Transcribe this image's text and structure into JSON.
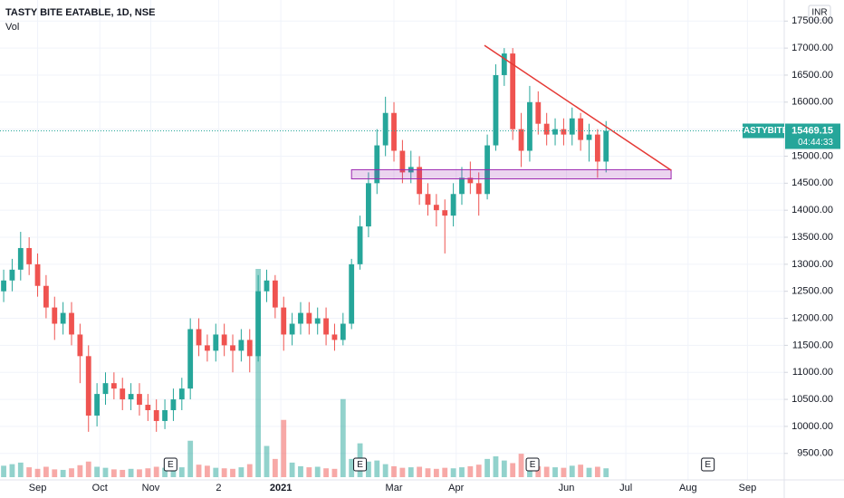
{
  "chart_data": {
    "type": "candlestick",
    "title": "TASTY BITE EATABLE, 1D, NSE",
    "subtitle": "Vol",
    "currency": "INR",
    "up_color": "#26a69a",
    "down_color": "#ef5350",
    "grid": true,
    "xlim": [
      -1.3,
      276
    ],
    "ylim": [
      9010,
      17890
    ],
    "y2lim": [
      0,
      40000
    ],
    "yticks": [
      {
        "value": 9500,
        "label": "9500.00"
      },
      {
        "value": 10000,
        "label": "10000.00"
      },
      {
        "value": 10500,
        "label": "10500.00"
      },
      {
        "value": 11000,
        "label": "11000.00"
      },
      {
        "value": 11500,
        "label": "11500.00"
      },
      {
        "value": 12000,
        "label": "12000.00"
      },
      {
        "value": 12500,
        "label": "12500.00"
      },
      {
        "value": 13000,
        "label": "13000.00"
      },
      {
        "value": 13500,
        "label": "13500.00"
      },
      {
        "value": 14000,
        "label": "14000.00"
      },
      {
        "value": 14500,
        "label": "14500.00"
      },
      {
        "value": 15000,
        "label": "15000.00"
      },
      {
        "value": 15500,
        "label": "15500.00"
      },
      {
        "value": 16000,
        "label": "16000.00"
      },
      {
        "value": 16500,
        "label": "16500.00"
      },
      {
        "value": 17000,
        "label": "17000.00"
      },
      {
        "value": 17500,
        "label": "17500.00"
      }
    ],
    "xticks": [
      {
        "value": 12,
        "label": "Sep"
      },
      {
        "value": 34,
        "label": "Oct"
      },
      {
        "value": 52,
        "label": "Nov"
      },
      {
        "value": 76,
        "label": "2"
      },
      {
        "value": 98,
        "label": "2021"
      },
      {
        "value": 138,
        "label": "Mar"
      },
      {
        "value": 160,
        "label": "Apr"
      },
      {
        "value": 199,
        "label": "Jun"
      },
      {
        "value": 220,
        "label": "Jul"
      },
      {
        "value": 242,
        "label": "Aug"
      },
      {
        "value": 263,
        "label": "Sep"
      }
    ],
    "x": [
      0,
      3,
      6,
      9,
      12,
      15,
      18,
      21,
      24,
      27,
      30,
      33,
      36,
      39,
      42,
      45,
      48,
      51,
      54,
      57,
      60,
      63,
      66,
      69,
      72,
      75,
      78,
      81,
      84,
      87,
      90,
      93,
      96,
      99,
      102,
      105,
      108,
      111,
      114,
      117,
      120,
      123,
      126,
      129,
      132,
      135,
      138,
      141,
      144,
      147,
      150,
      153,
      156,
      159,
      162,
      165,
      168,
      171,
      174,
      177,
      180,
      183,
      186,
      189,
      192,
      195,
      198,
      201,
      204,
      207,
      210,
      213
    ],
    "open": [
      12500,
      12700,
      12900,
      13300,
      13000,
      12600,
      12200,
      11900,
      12100,
      11700,
      11300,
      10200,
      10600,
      10800,
      10700,
      10500,
      10600,
      10400,
      10300,
      10100,
      10300,
      10500,
      10700,
      11800,
      11500,
      11400,
      11700,
      11500,
      11400,
      11600,
      11300,
      12500,
      12700,
      12200,
      11700,
      11900,
      12100,
      11900,
      12000,
      11700,
      11600,
      11900,
      13000,
      13700,
      14500,
      15200,
      15800,
      15100,
      14700,
      14800,
      14300,
      14100,
      14000,
      13900,
      14300,
      14600,
      14500,
      14300,
      15200,
      16500,
      16900,
      15500,
      15100,
      16000,
      15600,
      15400,
      15500,
      15400,
      15700,
      15300,
      15400,
      14900
    ],
    "high": [
      12900,
      13100,
      13600,
      13500,
      13200,
      12800,
      12400,
      12300,
      12300,
      11900,
      11500,
      10800,
      11000,
      11000,
      10900,
      10800,
      10800,
      10600,
      10500,
      10500,
      10700,
      10900,
      12000,
      12000,
      11700,
      11900,
      11900,
      11700,
      11800,
      11800,
      12800,
      12900,
      12800,
      12400,
      12100,
      12300,
      12300,
      12200,
      12200,
      11900,
      12100,
      13100,
      13900,
      14700,
      15500,
      16100,
      16000,
      15300,
      15100,
      15000,
      14500,
      14300,
      14200,
      14500,
      14800,
      14900,
      14700,
      15400,
      16700,
      17000,
      17000,
      15800,
      16300,
      16200,
      15800,
      15700,
      15700,
      15900,
      15800,
      15600,
      15500,
      15650
    ],
    "low": [
      12300,
      12500,
      12700,
      12800,
      12400,
      12000,
      11600,
      11700,
      11500,
      10800,
      9900,
      10000,
      10400,
      10500,
      10300,
      10300,
      10200,
      10100,
      9900,
      9950,
      10100,
      10300,
      10500,
      11300,
      11200,
      11200,
      11300,
      11000,
      11200,
      11000,
      11200,
      12300,
      12000,
      11400,
      11500,
      11700,
      11700,
      11700,
      11500,
      11400,
      11500,
      11800,
      12900,
      13500,
      14300,
      15000,
      14900,
      14500,
      14500,
      14100,
      13900,
      13700,
      13200,
      13700,
      14100,
      14300,
      13900,
      14200,
      15100,
      16300,
      15300,
      14800,
      14900,
      15400,
      15200,
      15200,
      15200,
      15200,
      15100,
      14900,
      14600,
      14700
    ],
    "close": [
      12700,
      12900,
      13300,
      13000,
      12600,
      12200,
      11900,
      12100,
      11700,
      11300,
      10200,
      10600,
      10800,
      10700,
      10500,
      10600,
      10400,
      10300,
      10100,
      10300,
      10500,
      10700,
      11800,
      11500,
      11400,
      11700,
      11500,
      11400,
      11600,
      11300,
      12500,
      12700,
      12200,
      11700,
      11900,
      12100,
      11900,
      12000,
      11700,
      11600,
      11900,
      13000,
      13700,
      14500,
      15200,
      15800,
      15100,
      14700,
      14800,
      14300,
      14100,
      14000,
      13900,
      14300,
      14600,
      14500,
      14300,
      15200,
      16500,
      16900,
      15500,
      15100,
      16000,
      15600,
      15400,
      15500,
      15400,
      15700,
      15300,
      15400,
      14900,
      15469.15
    ],
    "volume": [
      2200,
      2500,
      2800,
      1900,
      1600,
      2000,
      1500,
      1400,
      1700,
      2300,
      3000,
      2000,
      1800,
      1500,
      1400,
      1600,
      1500,
      1700,
      2000,
      1800,
      1600,
      1900,
      7000,
      2400,
      2200,
      1800,
      1700,
      1600,
      1900,
      2500,
      40000,
      6000,
      3500,
      11000,
      2800,
      2100,
      1900,
      2000,
      1700,
      1600,
      15000,
      3500,
      6500,
      3000,
      3200,
      2500,
      2100,
      1800,
      1900,
      2000,
      1700,
      1600,
      1800,
      1700,
      1900,
      2100,
      2400,
      3500,
      4000,
      3200,
      2700,
      4500,
      2500,
      2100,
      2000,
      1900,
      1800,
      2200,
      2400,
      1800,
      2000,
      1700
    ],
    "events": [
      {
        "x": 59,
        "label": "E"
      },
      {
        "x": 126,
        "label": "E"
      },
      {
        "x": 187,
        "label": "E"
      },
      {
        "x": 249,
        "label": "E"
      }
    ],
    "trendline": {
      "x": [
        170,
        236
      ],
      "y": [
        17050,
        14740
      ],
      "color": "#e53935"
    },
    "zone": {
      "x": [
        123,
        236
      ],
      "y": [
        14580,
        14750
      ],
      "color": "#9c27b0"
    },
    "last_price": {
      "symbol": "TASTYBITE",
      "value": 15469.15,
      "countdown": "04:44:33"
    }
  }
}
